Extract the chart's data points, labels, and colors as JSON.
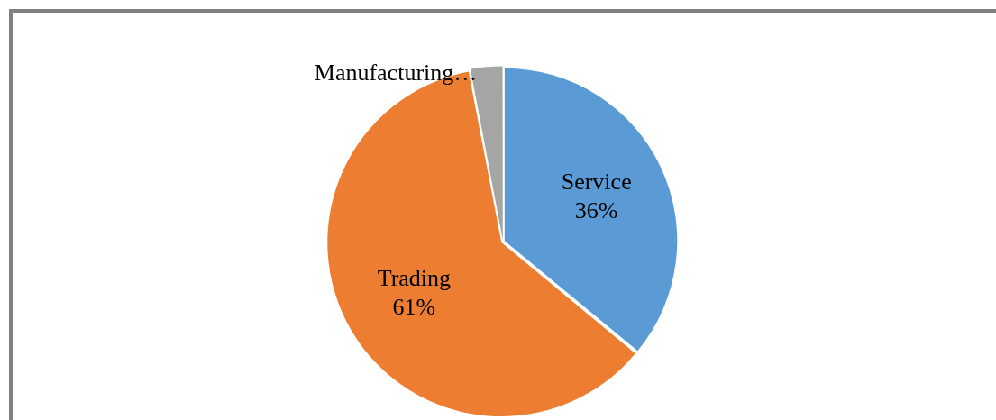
{
  "chart_data": {
    "type": "pie",
    "categories": [
      "Service",
      "Trading",
      "Manufacturing…"
    ],
    "values": [
      36,
      61,
      3
    ],
    "colors": [
      "#5b9bd5",
      "#ed7d31",
      "#a5a5a5"
    ],
    "value_labels": [
      "36%",
      "61%",
      null
    ]
  }
}
